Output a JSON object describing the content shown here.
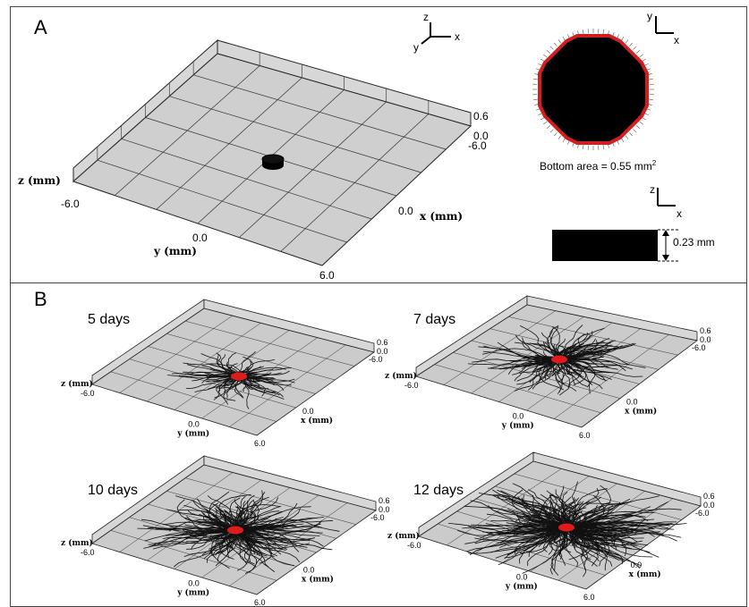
{
  "panel_a": {
    "label": "A",
    "axes_triad": {
      "z": "z",
      "y": "y",
      "x": "x"
    },
    "plot": {
      "z_axis_label": "z (mm)",
      "x_axis_label": "x (mm)",
      "y_axis_label": "y (mm)",
      "z_ticks": [
        "0.6",
        "0.0"
      ],
      "x_ticks": [
        "-6.0",
        "0.0",
        "6.0"
      ],
      "y_ticks": [
        "-6.0",
        "0.0"
      ]
    },
    "top_view": {
      "axes": {
        "y": "y",
        "x": "x"
      },
      "caption": "Bottom area = 0.55 mm",
      "caption_sup": "2",
      "fill_color": "#000000",
      "outline_color": "#d11f1f"
    },
    "side_view": {
      "axes": {
        "z": "z",
        "x": "x"
      },
      "height_label": "0.23 mm"
    }
  },
  "panel_b": {
    "label": "B",
    "network_color": "#111111",
    "implant_color": "#e01b1b",
    "plots": [
      {
        "title": "5 days",
        "z_ticks": [
          "0.6",
          "0.0"
        ],
        "x_tick": "-6.0",
        "x_mid": "0.0",
        "y_tick": "-6.0",
        "y_mid": "0.0",
        "y_end": "6.0",
        "z_axis_label": "z (mm)",
        "x_axis_label": "x (mm)",
        "y_axis_label": "y (mm)"
      },
      {
        "title": "7 days",
        "z_ticks": [
          "0.6",
          "0.0"
        ],
        "x_tick": "-6.0",
        "x_mid": "0.0",
        "y_tick": "-6.0",
        "y_mid": "0.0",
        "y_end": "6.0",
        "z_axis_label": "z (mm)",
        "x_axis_label": "x (mm)",
        "y_axis_label": "y (mm)"
      },
      {
        "title": "10 days",
        "z_ticks": [
          "0.6",
          "0.0"
        ],
        "x_tick": "-6.0",
        "x_mid": "0.0",
        "y_tick": "-6.0",
        "y_mid": "0.0",
        "y_end": "6.0",
        "z_axis_label": "z (mm)",
        "x_axis_label": "x (mm)",
        "y_axis_label": "y (mm)"
      },
      {
        "title": "12 days",
        "z_ticks": [
          "0.6",
          "0.0"
        ],
        "x_tick": "-6.0",
        "x_mid": "0.0",
        "y_tick": "-6.0",
        "y_mid": "0.0",
        "y_end": "6.0",
        "z_axis_label": "z (mm)",
        "x_axis_label": "x (mm)",
        "y_axis_label": "y (mm)"
      }
    ]
  }
}
